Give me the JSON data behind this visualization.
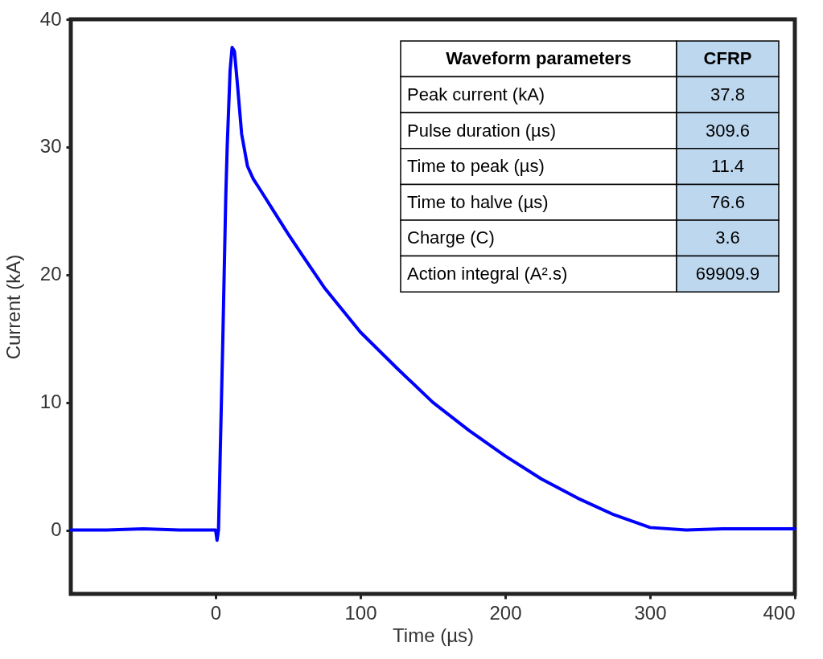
{
  "chart_data": {
    "type": "line",
    "xlabel": "Time (µs)",
    "ylabel": "Current (kA)",
    "x": [
      -100,
      -75,
      -50,
      -25,
      0,
      1,
      2,
      3,
      5,
      7,
      8,
      10,
      11.4,
      13,
      15,
      18,
      22,
      26,
      30,
      40,
      50,
      60,
      75,
      100,
      125,
      150,
      175,
      200,
      225,
      250,
      275,
      300,
      325,
      350,
      375,
      400
    ],
    "series": [
      {
        "color": "#0000ff",
        "values": [
          0,
          0,
          0.1,
          0,
          0,
          -0.8,
          0,
          5,
          15,
          26,
          30,
          36,
          37.8,
          37.5,
          35,
          31,
          28.5,
          27.5,
          26.8,
          25,
          23.2,
          21.5,
          19,
          15.5,
          12.7,
          10,
          7.8,
          5.8,
          4,
          2.5,
          1.2,
          0.2,
          0,
          0.1,
          0.1,
          0.1
        ]
      }
    ],
    "xlim": [
      -100,
      400
    ],
    "ylim": [
      -5,
      40
    ],
    "xticks": [
      0,
      100,
      200,
      300,
      400
    ],
    "yticks": [
      0,
      10,
      20,
      30,
      40
    ],
    "grid": false,
    "legend": false,
    "marker": "none",
    "line_style": "solid",
    "annotations": [
      "Waveform parameters",
      "CFRP",
      "Peak current (kA)",
      "37.8",
      "Pulse duration (µs)",
      "309.6",
      "Time to peak (µs)",
      "11.4",
      "Time to halve (µs)",
      "76.6",
      "Charge (C)",
      "3.6",
      "Action integral (A².s)",
      "69909.9"
    ]
  }
}
